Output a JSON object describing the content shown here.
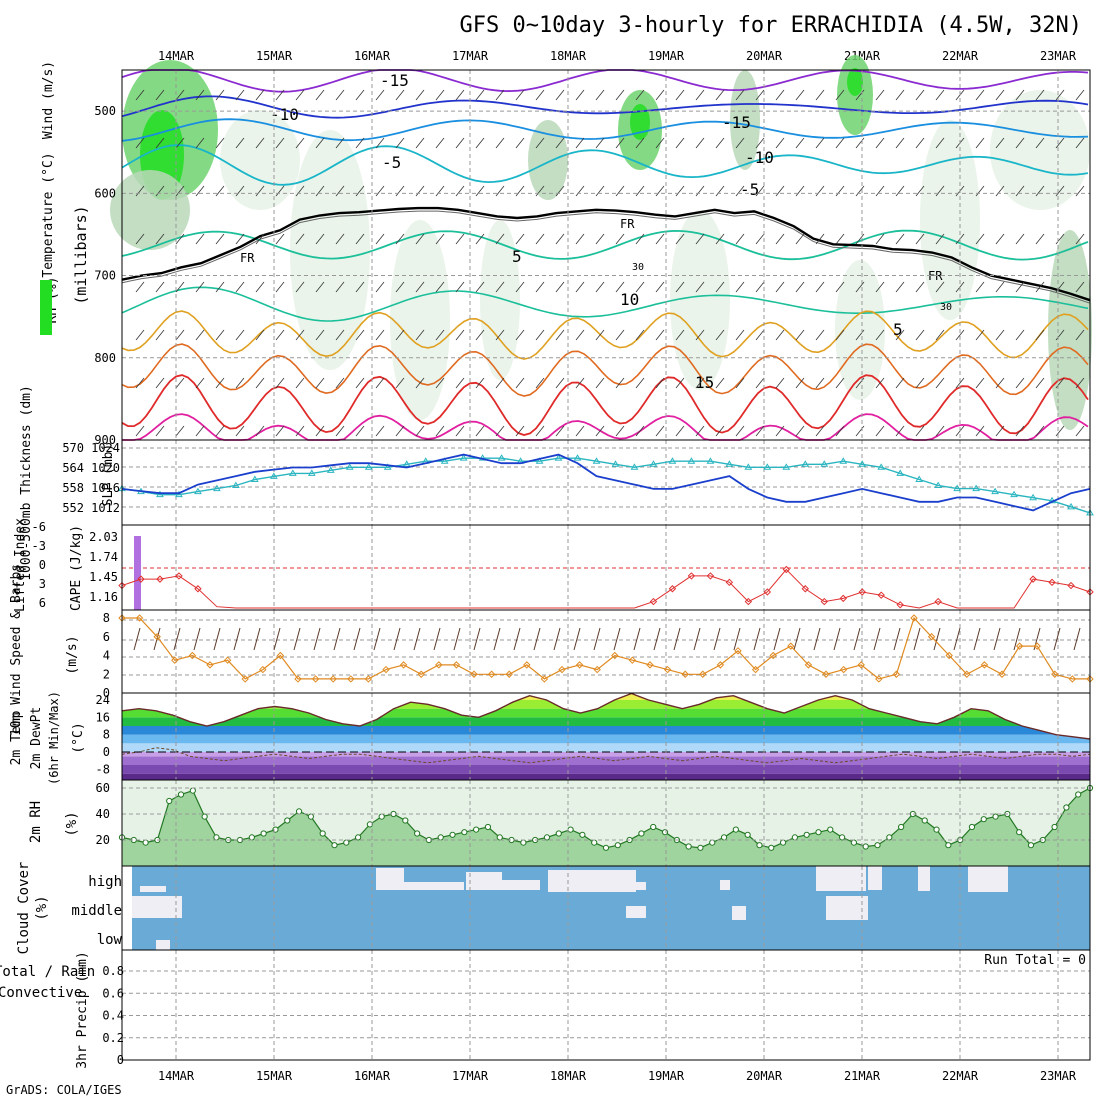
{
  "title": "GFS 0~10day 3-hourly for ERRACHIDIA (4.5W, 32N)",
  "credit": "GrADS: COLA/IGES",
  "dates": [
    "14MAR",
    "15MAR",
    "16MAR",
    "17MAR",
    "18MAR",
    "19MAR",
    "20MAR",
    "21MAR",
    "22MAR",
    "23MAR"
  ],
  "colors": {
    "rh_light": "#e6f2e6",
    "rh_mid": "#b8d8b8",
    "rh_dark": "#6fd46f",
    "rh_bright": "#22dd22",
    "temp_neg15": "#2233cc",
    "temp_neg10": "#1a8fe0",
    "temp_neg5": "#19b5c8",
    "temp_5": "#1bbf9a",
    "temp_10": "#e0a020",
    "temp_15": "#e06a20",
    "temp_20": "#e02a2a",
    "temp_25": "#e020a0",
    "temp_top": "#8a2ad0",
    "freezing": "#000000",
    "slp": "#1a3fcc",
    "thickness": "#2ab5c0",
    "lifted": "#e03030",
    "cape": "#b070e0",
    "wind10m": "#e08a20",
    "barb": "#5a3a2a",
    "rh2m": "#44bb44",
    "cloud": "#6aaad6",
    "cloud_clear": "#f0eef5",
    "precip_rain": "#22aa22",
    "precip_conv": "#e03030"
  },
  "chart_data": [
    {
      "id": "upper_air",
      "type": "contour",
      "ylabel_parts": [
        "RH (%)",
        "Temperature (°C)",
        "Wind (m/s)"
      ],
      "yunits": "(millibars)",
      "yticks": [
        500,
        600,
        700,
        800,
        900
      ],
      "ylim": [
        450,
        900
      ],
      "temp_labels": [
        "-15",
        "-10",
        "-5",
        "5",
        "10",
        "15",
        "-15",
        "-10",
        "-5",
        "5"
      ],
      "freezing_label": "FR",
      "rh_label": "30",
      "freezing_level_mb": [
        705,
        700,
        697,
        690,
        685,
        675,
        665,
        652,
        645,
        632,
        627,
        624,
        623,
        621,
        619,
        618,
        618,
        620,
        624,
        628,
        630,
        628,
        624,
        622,
        620,
        621,
        623,
        626,
        628,
        624,
        620,
        624,
        622,
        630,
        640,
        655,
        662,
        663,
        664,
        668,
        669,
        672,
        678,
        690,
        700,
        705,
        710,
        715,
        722,
        730
      ]
    },
    {
      "id": "slp_thickness",
      "type": "line",
      "ylabel_left": "1000-500mb Thickness (dm)",
      "ylabel_right": "SLP (mb)",
      "left_ticks": [
        552,
        558,
        564,
        570
      ],
      "right_ticks": [
        1012,
        1016,
        1020,
        1024
      ],
      "slp": [
        1016,
        1015.5,
        1015,
        1015,
        1017,
        1018,
        1019,
        1020,
        1020.5,
        1021,
        1021,
        1021.5,
        1022,
        1022,
        1021.5,
        1021,
        1022,
        1023,
        1024,
        1023,
        1022,
        1022,
        1023,
        1024,
        1022,
        1019,
        1018,
        1017,
        1016,
        1016,
        1017,
        1018,
        1019,
        1016,
        1014,
        1013,
        1013,
        1014,
        1015,
        1016,
        1015,
        1014,
        1013,
        1013,
        1014,
        1014,
        1013,
        1012,
        1011,
        1013,
        1015,
        1016
      ],
      "thickness": [
        558,
        557,
        556,
        556,
        557,
        558,
        559,
        561,
        562,
        563,
        563,
        564,
        565,
        565,
        565,
        566,
        567,
        567,
        568,
        568,
        568,
        567,
        567,
        568,
        568,
        567,
        566,
        565,
        566,
        567,
        567,
        567,
        566,
        565,
        565,
        565,
        566,
        566,
        567,
        566,
        565,
        563,
        561,
        559,
        558,
        558,
        557,
        556,
        555,
        554,
        552,
        550
      ]
    },
    {
      "id": "instability",
      "type": "line",
      "ylabel_left": "Lifted Index",
      "ylabel_right": "CAPE (J/kg)",
      "left_ticks": [
        "-6",
        "-3",
        "0",
        "3",
        "6"
      ],
      "right_ticks": [
        "2.03",
        "1.74",
        "1.45",
        "1.16"
      ],
      "cape_spike_day_index": 0,
      "lifted_index": [
        2.5,
        1.5,
        1.5,
        1.0,
        3.0,
        5.8,
        6,
        6,
        6,
        6,
        6,
        6,
        6,
        6,
        6,
        6,
        6,
        6,
        6,
        6,
        6,
        6,
        6,
        6,
        6,
        6,
        6,
        6,
        5,
        3,
        1,
        1,
        2,
        5,
        3.5,
        0,
        3,
        5,
        4.5,
        3.5,
        4,
        5.5,
        6,
        5,
        6,
        6,
        6,
        6,
        1.5,
        2,
        2.5,
        3.5
      ]
    },
    {
      "id": "wind10m",
      "type": "line",
      "ylabel": "10m Wind Speed & Barbs",
      "yunits": "(m/s)",
      "yticks": [
        0,
        2,
        4,
        6,
        8
      ],
      "speed": [
        8,
        8,
        6,
        3.5,
        4,
        3,
        3.5,
        1.5,
        2.5,
        4,
        1.5,
        1.5,
        1.5,
        1.5,
        1.5,
        2.5,
        3,
        2,
        3,
        3,
        2,
        2,
        2,
        3,
        1.5,
        2.5,
        3,
        2.5,
        4,
        3.5,
        3,
        2.5,
        2,
        2,
        3,
        4.5,
        2.5,
        4,
        5,
        3,
        2,
        2.5,
        3,
        1.5,
        2,
        8,
        6,
        4,
        2,
        3,
        2,
        5,
        5,
        2,
        1.5,
        1.5
      ]
    },
    {
      "id": "temperature2m",
      "type": "area",
      "ylabel": "2m Temp 2m DewPt (6hr Min/Max)",
      "yunits": "(°C)",
      "yticks": [
        -8,
        0,
        8,
        16,
        24
      ],
      "temp": [
        19,
        20,
        19,
        17,
        14,
        12,
        14,
        17,
        20,
        21,
        20,
        18,
        15,
        13,
        12,
        15,
        20,
        23,
        22,
        20,
        17,
        16,
        19,
        23,
        26,
        24,
        20,
        18,
        20,
        24,
        27,
        24,
        22,
        20,
        22,
        25,
        26,
        23,
        20,
        18,
        21,
        24,
        26,
        24,
        20,
        18,
        16,
        14,
        13,
        16,
        20,
        19,
        15,
        12,
        10,
        8,
        7,
        6
      ],
      "dewpt": [
        -1,
        0,
        2,
        1,
        -2,
        -3,
        -4,
        -3,
        -2,
        -1,
        -2,
        -3,
        -2,
        -1,
        -1,
        -2,
        -3,
        -4,
        -5,
        -4,
        -3,
        -2,
        -3,
        -4,
        -5,
        -4,
        -3,
        -2,
        -3,
        -4,
        -3,
        -2,
        -3,
        -4,
        -3,
        -2,
        -3,
        -4,
        -5,
        -4,
        -3,
        -4,
        -5,
        -4,
        -3,
        -2,
        -1,
        -2,
        -3,
        -2,
        -1,
        -2,
        -3,
        -2,
        -1,
        -1,
        -2,
        -1
      ]
    },
    {
      "id": "rh2m",
      "type": "area",
      "ylabel": "2m RH",
      "yunits": "(%)",
      "yticks": [
        20,
        40,
        60
      ],
      "rh": [
        22,
        20,
        18,
        20,
        50,
        55,
        58,
        38,
        22,
        20,
        20,
        22,
        25,
        28,
        35,
        42,
        38,
        25,
        16,
        18,
        22,
        32,
        38,
        40,
        35,
        25,
        20,
        22,
        24,
        26,
        28,
        30,
        22,
        20,
        18,
        20,
        22,
        25,
        28,
        24,
        18,
        14,
        16,
        20,
        25,
        30,
        26,
        20,
        15,
        14,
        18,
        22,
        28,
        24,
        16,
        14,
        18,
        22,
        24,
        26,
        28,
        22,
        18,
        15,
        16,
        22,
        30,
        40,
        35,
        28,
        16,
        20,
        30,
        36,
        38,
        40,
        26,
        16,
        20,
        30,
        45,
        55,
        60
      ]
    },
    {
      "id": "cloud_cover",
      "type": "heatmap",
      "ylabel": "Cloud Cover",
      "yunits": "(%)",
      "levels": [
        "high",
        "middle",
        "low"
      ]
    },
    {
      "id": "precip",
      "type": "bar",
      "ylabel_left": "Total / Rain Convective",
      "ylabel": "3hr Precip (mm)",
      "yticks": [
        "0",
        "0.2",
        "0.4",
        "0.6",
        "0.8"
      ],
      "run_total_label": "Run Total = 0",
      "values": []
    }
  ]
}
